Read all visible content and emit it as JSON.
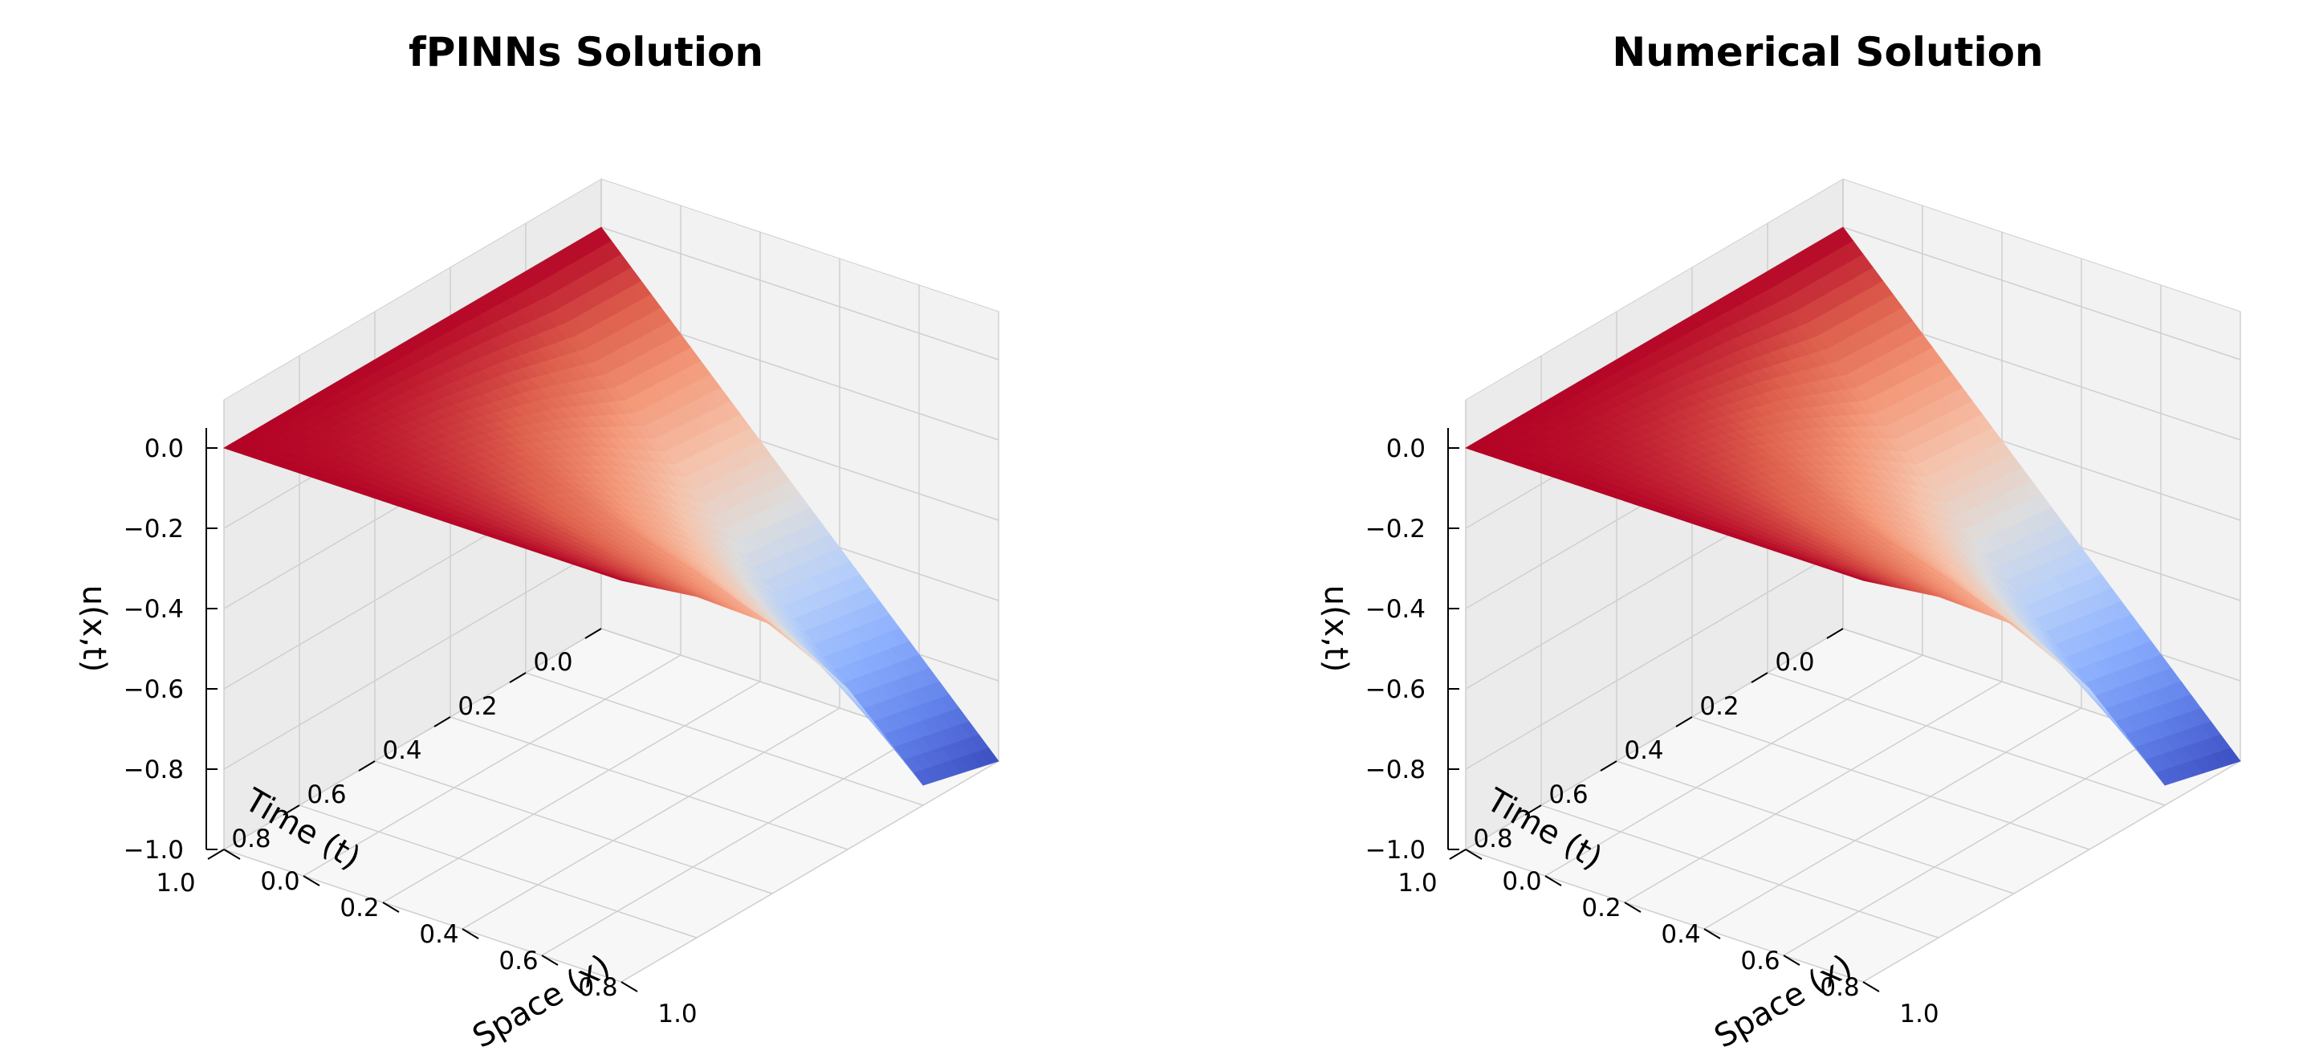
{
  "chart_data": [
    {
      "type": "surface",
      "title": "fPINNs Solution",
      "xlabel": "Space (x)",
      "ylabel": "Time (t)",
      "zlabel": "u(x,t)",
      "xlim": [
        0.0,
        1.0
      ],
      "ylim": [
        0.0,
        1.0
      ],
      "zlim": [
        -1.0,
        0.05
      ],
      "x_ticks": [
        "0.0",
        "0.2",
        "0.4",
        "0.6",
        "0.8",
        "1.0"
      ],
      "y_ticks": [
        "0.0",
        "0.2",
        "0.4",
        "0.6",
        "0.8",
        "1.0"
      ],
      "z_ticks": [
        "−1.0",
        "−0.8",
        "−0.6",
        "−0.4",
        "−0.2",
        "0.0"
      ],
      "colormap": "coolwarm",
      "x": [
        0.0,
        0.2,
        0.4,
        0.6,
        0.8,
        1.0
      ],
      "t": [
        0.0,
        0.2,
        0.4,
        0.6,
        0.8,
        1.0
      ],
      "u_rows_by_t": [
        [
          0.0,
          -0.2,
          -0.4,
          -0.6,
          -0.8,
          -1.0
        ],
        [
          0.0,
          -0.19,
          -0.38,
          -0.57,
          -0.76,
          -0.95
        ],
        [
          0.0,
          -0.12,
          -0.24,
          -0.36,
          -0.48,
          -0.6
        ],
        [
          0.0,
          -0.07,
          -0.13,
          -0.2,
          -0.26,
          -0.33
        ],
        [
          0.0,
          -0.03,
          -0.06,
          -0.09,
          -0.12,
          -0.15
        ],
        [
          0.0,
          0.0,
          0.0,
          0.0,
          0.0,
          0.0
        ]
      ]
    },
    {
      "type": "surface",
      "title": "Numerical Solution",
      "xlabel": "Space (x)",
      "ylabel": "Time (t)",
      "zlabel": "u(x,t)",
      "xlim": [
        0.0,
        1.0
      ],
      "ylim": [
        0.0,
        1.0
      ],
      "zlim": [
        -1.0,
        0.05
      ],
      "x_ticks": [
        "0.0",
        "0.2",
        "0.4",
        "0.6",
        "0.8",
        "1.0"
      ],
      "y_ticks": [
        "0.0",
        "0.2",
        "0.4",
        "0.6",
        "0.8",
        "1.0"
      ],
      "z_ticks": [
        "−1.0",
        "−0.8",
        "−0.6",
        "−0.4",
        "−0.2",
        "0.0"
      ],
      "colormap": "coolwarm",
      "x": [
        0.0,
        0.2,
        0.4,
        0.6,
        0.8,
        1.0
      ],
      "t": [
        0.0,
        0.2,
        0.4,
        0.6,
        0.8,
        1.0
      ],
      "u_rows_by_t": [
        [
          0.0,
          -0.2,
          -0.4,
          -0.6,
          -0.8,
          -1.0
        ],
        [
          0.0,
          -0.19,
          -0.38,
          -0.57,
          -0.76,
          -0.95
        ],
        [
          0.0,
          -0.12,
          -0.24,
          -0.36,
          -0.48,
          -0.6
        ],
        [
          0.0,
          -0.07,
          -0.13,
          -0.2,
          -0.26,
          -0.33
        ],
        [
          0.0,
          -0.03,
          -0.06,
          -0.09,
          -0.12,
          -0.15
        ],
        [
          0.0,
          0.0,
          0.0,
          0.0,
          0.0,
          0.0
        ]
      ]
    }
  ]
}
